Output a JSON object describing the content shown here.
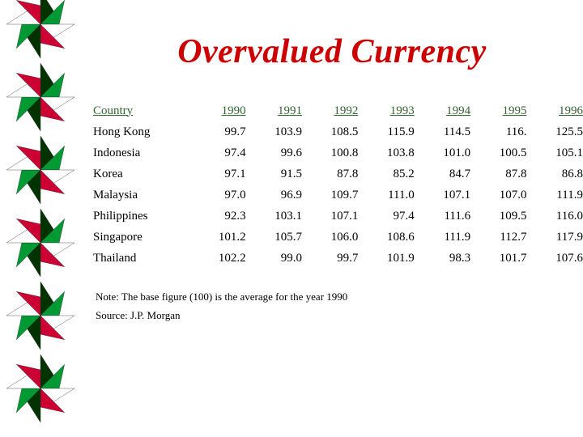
{
  "title": "Overvalued Currency",
  "colors": {
    "title": "#cc0000",
    "header": "#336633",
    "pinwheel_dark": "#003300",
    "pinwheel_green": "#009933",
    "pinwheel_red": "#cc0033"
  },
  "table": {
    "headers": [
      "Country",
      "1990",
      "1991",
      "1992",
      "1993",
      "1994",
      "1995",
      "1996"
    ],
    "rows": [
      [
        "Hong Kong",
        "99.7",
        "103.9",
        "108.5",
        "115.9",
        "114.5",
        "116.",
        "125.5"
      ],
      [
        "Indonesia",
        "97.4",
        "99.6",
        "100.8",
        "103.8",
        "101.0",
        "100.5",
        "105.1"
      ],
      [
        "Korea",
        "97.1",
        "91.5",
        "87.8",
        "85.2",
        "84.7",
        "87.8",
        "86.8"
      ],
      [
        "Malaysia",
        "97.0",
        "96.9",
        "109.7",
        "111.0",
        "107.1",
        "107.0",
        "111.9"
      ],
      [
        "Philippines",
        "92.3",
        "103.1",
        "107.1",
        "97.4",
        "111.6",
        "109.5",
        "116.0"
      ],
      [
        "Singapore",
        "101.2",
        "105.7",
        "106.0",
        "108.6",
        "111.9",
        "112.7",
        "117.9"
      ],
      [
        "Thailand",
        "102.2",
        "99.0",
        "99.7",
        "101.9",
        "98.3",
        "101.7",
        "107.6"
      ]
    ]
  },
  "notes": {
    "base": "Note: The base figure (100) is the average for the year 1990",
    "source": "Source: J.P. Morgan"
  }
}
